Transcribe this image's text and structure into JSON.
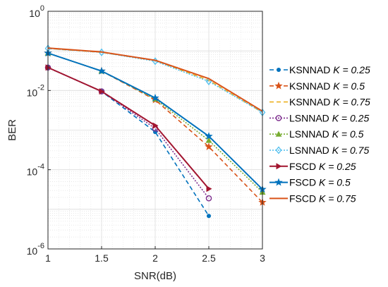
{
  "chart_data": {
    "type": "line",
    "xlabel": "SNR(dB)",
    "ylabel": "BER",
    "x_scale": "linear",
    "y_scale": "log",
    "xlim": [
      1,
      3
    ],
    "ylim": [
      1e-06,
      1
    ],
    "x_ticks": [
      1,
      1.5,
      2,
      2.5,
      3
    ],
    "x_tick_labels": [
      "1",
      "1.5",
      "2",
      "2.5",
      "3"
    ],
    "y_ticks": [
      1e-06,
      0.0001,
      0.01,
      1
    ],
    "y_tick_labels": [
      {
        "base": "10",
        "exp": "-6"
      },
      {
        "base": "10",
        "exp": "-4"
      },
      {
        "base": "10",
        "exp": "-2"
      },
      {
        "base": "10",
        "exp": "0"
      }
    ],
    "grid": true,
    "minor_grid": true,
    "legend_position": "right, outside plot",
    "series": [
      {
        "name": "KSNNAD",
        "k_label": "K = 0.25",
        "color": "#0072BD",
        "dash": "6,4",
        "marker": "dot",
        "x": [
          1,
          1.5,
          2,
          2.5
        ],
        "y": [
          0.038,
          0.0095,
          0.0009,
          6.8e-06
        ]
      },
      {
        "name": "KSNNAD",
        "k_label": "K = 0.5",
        "color": "#D95319",
        "dash": "6,4",
        "marker": "star",
        "x": [
          1,
          1.5,
          2,
          2.5,
          3
        ],
        "y": [
          0.088,
          0.031,
          0.0058,
          0.00038,
          1.5e-05
        ]
      },
      {
        "name": "KSNNAD",
        "k_label": "K = 0.75",
        "color": "#EDB120",
        "dash": "6,4",
        "marker": "none",
        "x": [
          1,
          1.5,
          2,
          2.5,
          3
        ],
        "y": [
          0.115,
          0.092,
          0.057,
          0.018,
          0.0028
        ]
      },
      {
        "name": "LSNNAD",
        "k_label": "K = 0.25",
        "color": "#7E2F8E",
        "dash": "2,2",
        "marker": "circle",
        "x": [
          1,
          1.5,
          2,
          2.5
        ],
        "y": [
          0.038,
          0.0095,
          0.0011,
          1.9e-05
        ]
      },
      {
        "name": "LSNNAD",
        "k_label": "K = 0.5",
        "color": "#77AC30",
        "dash": "2,2",
        "marker": "triangle",
        "x": [
          1,
          1.5,
          2,
          2.5,
          3
        ],
        "y": [
          0.088,
          0.031,
          0.0061,
          0.00055,
          2.7e-05
        ]
      },
      {
        "name": "LSNNAD",
        "k_label": "K = 0.75",
        "color": "#4DBEEE",
        "dash": "2,2",
        "marker": "diamond",
        "x": [
          1,
          1.5,
          2,
          2.5,
          3
        ],
        "y": [
          0.115,
          0.092,
          0.055,
          0.017,
          0.0028
        ]
      },
      {
        "name": "FSCD",
        "k_label": "K = 0.25",
        "color": "#A2142F",
        "dash": "",
        "marker": "triangle-right",
        "x": [
          1,
          1.5,
          2,
          2.5
        ],
        "y": [
          0.038,
          0.0095,
          0.0013,
          3.3e-05
        ]
      },
      {
        "name": "FSCD",
        "k_label": "K = 0.5",
        "color": "#0072BD",
        "dash": "",
        "marker": "star",
        "x": [
          1,
          1.5,
          2,
          2.5,
          3
        ],
        "y": [
          0.088,
          0.031,
          0.0065,
          0.0007,
          3.2e-05
        ]
      },
      {
        "name": "FSCD",
        "k_label": "K = 0.75",
        "color": "#D95319",
        "dash": "",
        "marker": "none",
        "x": [
          1,
          1.5,
          2,
          2.5,
          3
        ],
        "y": [
          0.118,
          0.094,
          0.058,
          0.02,
          0.003
        ]
      }
    ]
  }
}
